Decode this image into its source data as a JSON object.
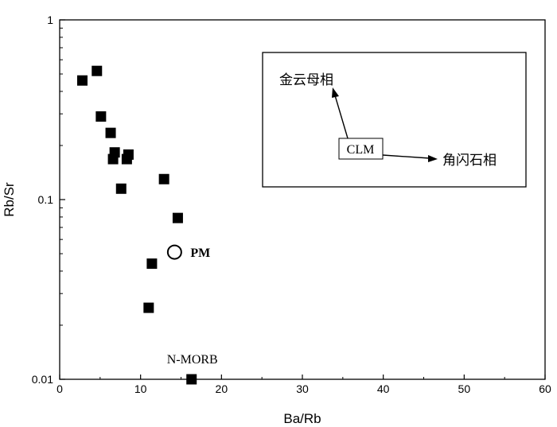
{
  "chart_data": {
    "type": "scatter",
    "title": "",
    "xlabel": "Ba/Rb",
    "ylabel": "Rb/Sr",
    "xlim": [
      0,
      60
    ],
    "ylim": [
      0.01,
      1
    ],
    "yscale": "log",
    "xticks": [
      "0",
      "10",
      "20",
      "30",
      "40",
      "50",
      "60"
    ],
    "yticks": [
      "1",
      "0.1",
      "0.01"
    ],
    "grid": false,
    "series": [
      {
        "marker": "filled-square",
        "points": [
          {
            "x": 2.8,
            "y": 0.46
          },
          {
            "x": 4.6,
            "y": 0.52
          },
          {
            "x": 5.1,
            "y": 0.29
          },
          {
            "x": 6.3,
            "y": 0.235
          },
          {
            "x": 6.6,
            "y": 0.168
          },
          {
            "x": 6.8,
            "y": 0.183
          },
          {
            "x": 8.3,
            "y": 0.168
          },
          {
            "x": 8.5,
            "y": 0.178
          },
          {
            "x": 7.6,
            "y": 0.115
          },
          {
            "x": 12.9,
            "y": 0.13
          },
          {
            "x": 14.6,
            "y": 0.079
          },
          {
            "x": 11.4,
            "y": 0.044
          },
          {
            "x": 11.0,
            "y": 0.025
          },
          {
            "x": 16.3,
            "y": 0.01
          }
        ]
      }
    ],
    "reference_points": [
      {
        "label": "PM",
        "x": 14.2,
        "y": 0.051,
        "marker": "open-circle"
      },
      {
        "label": "N-MORB",
        "x": 16.3,
        "y": 0.01,
        "marker": "filled-square"
      }
    ],
    "inset": {
      "center_label": "CLM",
      "arrow_up_label": "金云母相",
      "arrow_right_label": "角闪石相"
    }
  }
}
